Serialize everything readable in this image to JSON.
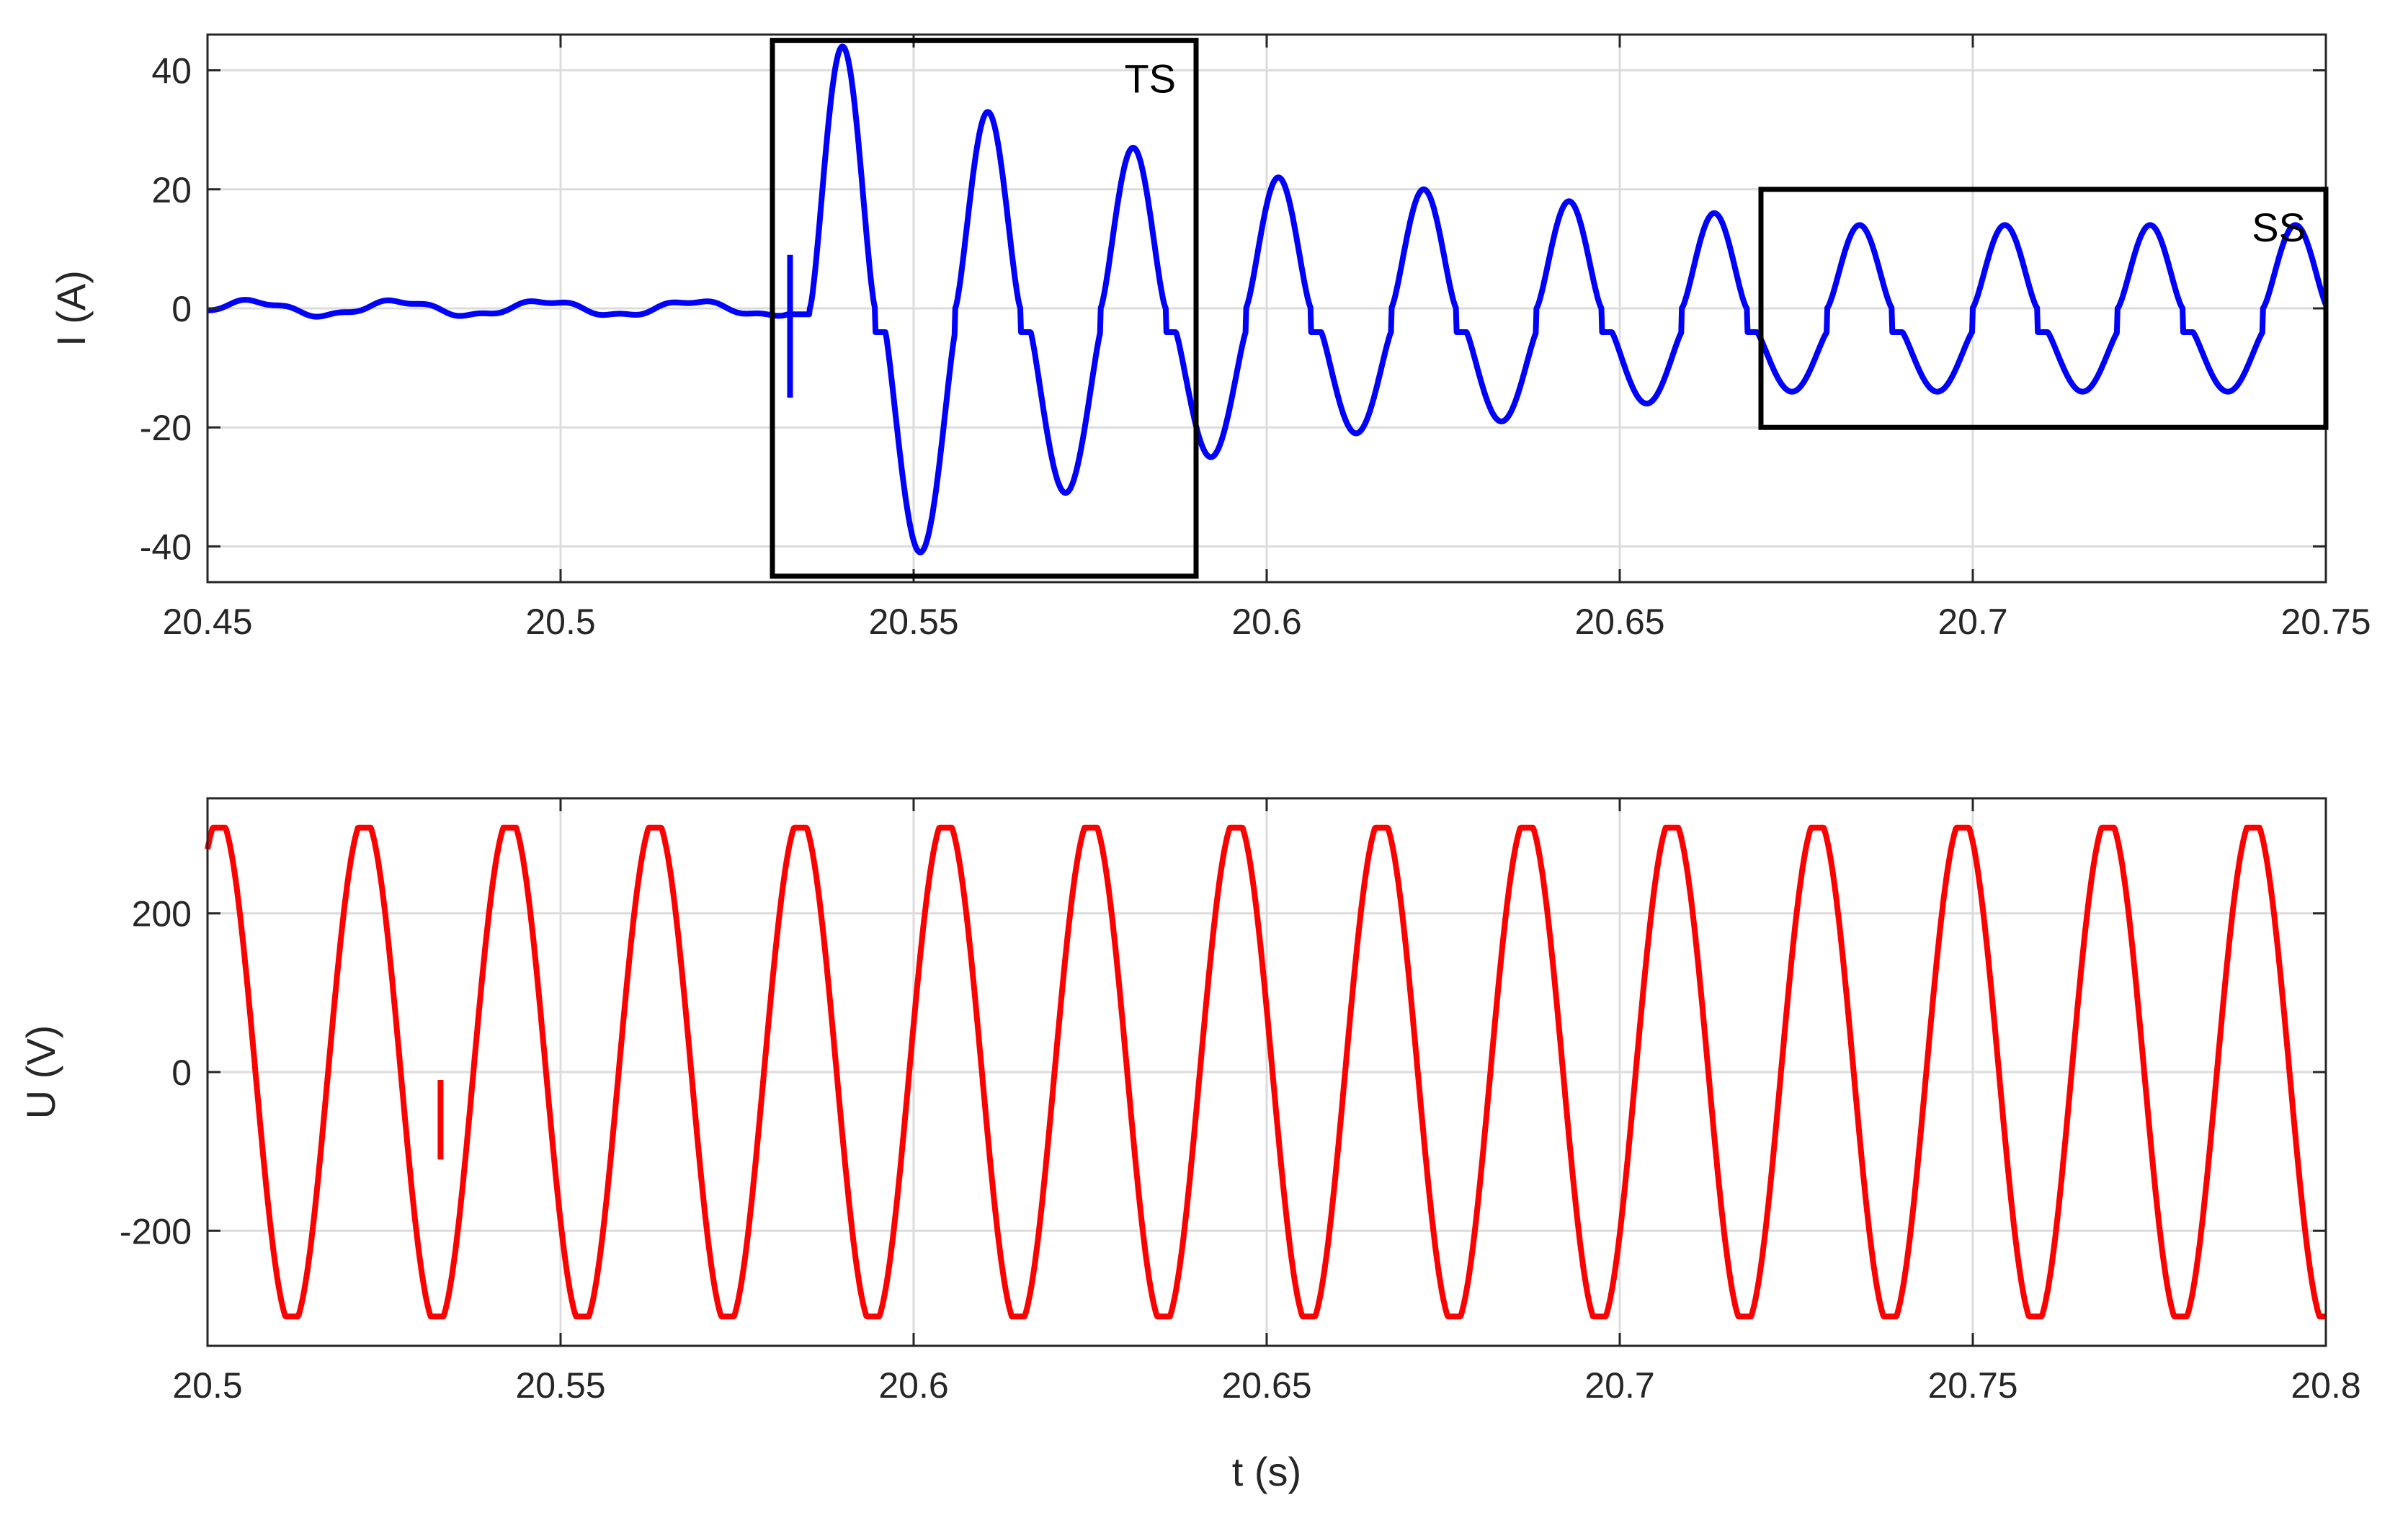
{
  "chart_data": [
    {
      "type": "line",
      "title": "",
      "xlabel": "",
      "ylabel": "I (A)",
      "xlim": [
        20.45,
        20.75
      ],
      "ylim": [
        -46,
        46
      ],
      "xticks": [
        20.45,
        20.5,
        20.55,
        20.6,
        20.65,
        20.7,
        20.75
      ],
      "xtick_labels": [
        "20.45",
        "20.5",
        "20.55",
        "20.6",
        "20.65",
        "20.7",
        "20.75"
      ],
      "yticks": [
        -40,
        -20,
        0,
        20,
        40
      ],
      "ytick_labels": [
        "-40",
        "-20",
        "0",
        "20",
        "40"
      ],
      "grid": true,
      "color": "#0000ff",
      "series": [
        {
          "fault_time": 20.5325,
          "frequency_hz": 48.6,
          "pre_fault_amplitude": 1.2,
          "transient_peaks": [
            44,
            33,
            27,
            22,
            20,
            18,
            16
          ],
          "transient_troughs": [
            -41,
            -31,
            -25,
            -21,
            -19,
            -16
          ],
          "steady_state_peak": 14,
          "steady_state_trough": -14
        }
      ],
      "annotations": [
        {
          "label": "TS",
          "x_range": [
            20.53,
            20.59
          ],
          "y_range": [
            -45,
            45
          ]
        },
        {
          "label": "SS",
          "x_range": [
            20.67,
            20.75
          ],
          "y_range": [
            -20,
            20
          ]
        }
      ]
    },
    {
      "type": "line",
      "title": "",
      "xlabel": "t (s)",
      "ylabel": "U (V)",
      "xlim": [
        20.5,
        20.8
      ],
      "ylim": [
        -345,
        345
      ],
      "xticks": [
        20.5,
        20.55,
        20.6,
        20.65,
        20.7,
        20.75,
        20.8
      ],
      "xtick_labels": [
        "20.5",
        "20.55",
        "20.6",
        "20.65",
        "20.7",
        "20.75",
        "20.8"
      ],
      "yticks": [
        -200,
        0,
        200
      ],
      "ytick_labels": [
        "-200",
        "0",
        "200"
      ],
      "grid": true,
      "color": "#ff0000",
      "series": [
        {
          "amplitude": 308,
          "frequency_hz": 48.6,
          "value_at_start": 270,
          "disturbance_time": 20.533
        }
      ]
    }
  ]
}
